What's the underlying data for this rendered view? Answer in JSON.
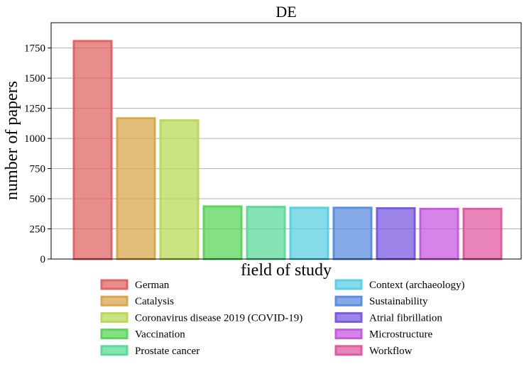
{
  "chart_data": {
    "type": "bar",
    "title": "DE",
    "xlabel": "field of study",
    "ylabel": "number of papers",
    "ylim": [
      0,
      1960
    ],
    "yticks": [
      0,
      250,
      500,
      750,
      1000,
      1250,
      1500,
      1750
    ],
    "grid": "horizontal",
    "legend_position": "bottom",
    "series": [
      {
        "name": "German",
        "value": 1808,
        "color": "#e06666"
      },
      {
        "name": "Catalysis",
        "value": 1167,
        "color": "#d9a84e"
      },
      {
        "name": "Coronavirus disease 2019 (COVID-19)",
        "value": 1150,
        "color": "#b9d95a"
      },
      {
        "name": "Vaccination",
        "value": 436,
        "color": "#5bd65b"
      },
      {
        "name": "Prostate cancer",
        "value": 432,
        "color": "#5dd99a"
      },
      {
        "name": "Context (archaeology)",
        "value": 425,
        "color": "#5ccfe0"
      },
      {
        "name": "Sustainability",
        "value": 425,
        "color": "#5b8ee0"
      },
      {
        "name": "Atrial fibrillation",
        "value": 421,
        "color": "#7b5be0"
      },
      {
        "name": "Microstructure",
        "value": 416,
        "color": "#c85be0"
      },
      {
        "name": "Workflow",
        "value": 416,
        "color": "#e05ba0"
      }
    ]
  }
}
